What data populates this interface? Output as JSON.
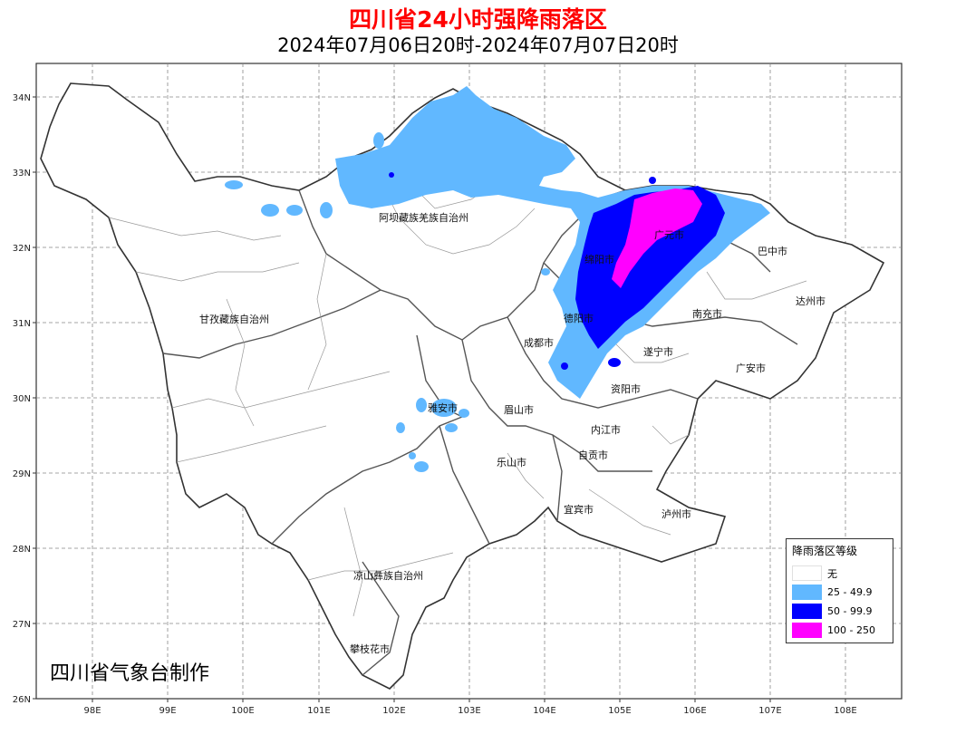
{
  "title": "四川省24小时强降雨落区",
  "subtitle": "2024年07月06日20时-2024年07月07日20时",
  "credit": "四川省气象台制作",
  "axes": {
    "lat_labels": [
      "34N",
      "33N",
      "32N",
      "31N",
      "30N",
      "29N",
      "28N",
      "27N",
      "26N"
    ],
    "lon_labels": [
      "98E",
      "99E",
      "100E",
      "101E",
      "102E",
      "103E",
      "104E",
      "105E",
      "106E",
      "107E",
      "108E"
    ]
  },
  "cities": [
    "阿坝藏族羌族自治州",
    "甘孜藏族自治州",
    "广元市",
    "巴中市",
    "绵阳市",
    "达州市",
    "德阳市",
    "南充市",
    "成都市",
    "遂宁市",
    "广安市",
    "资阳市",
    "雅安市",
    "眉山市",
    "内江市",
    "自贡市",
    "乐山市",
    "宜宾市",
    "泸州市",
    "凉山彝族自治州",
    "攀枝花市"
  ],
  "legend": {
    "title": "降雨落区等级",
    "items": [
      {
        "label": "无",
        "color": "#ffffff"
      },
      {
        "label": "25 - 49.9",
        "color": "#61b8ff"
      },
      {
        "label": "50 - 99.9",
        "color": "#0000ff"
      },
      {
        "label": "100 - 250",
        "color": "#ff00ff"
      }
    ]
  }
}
